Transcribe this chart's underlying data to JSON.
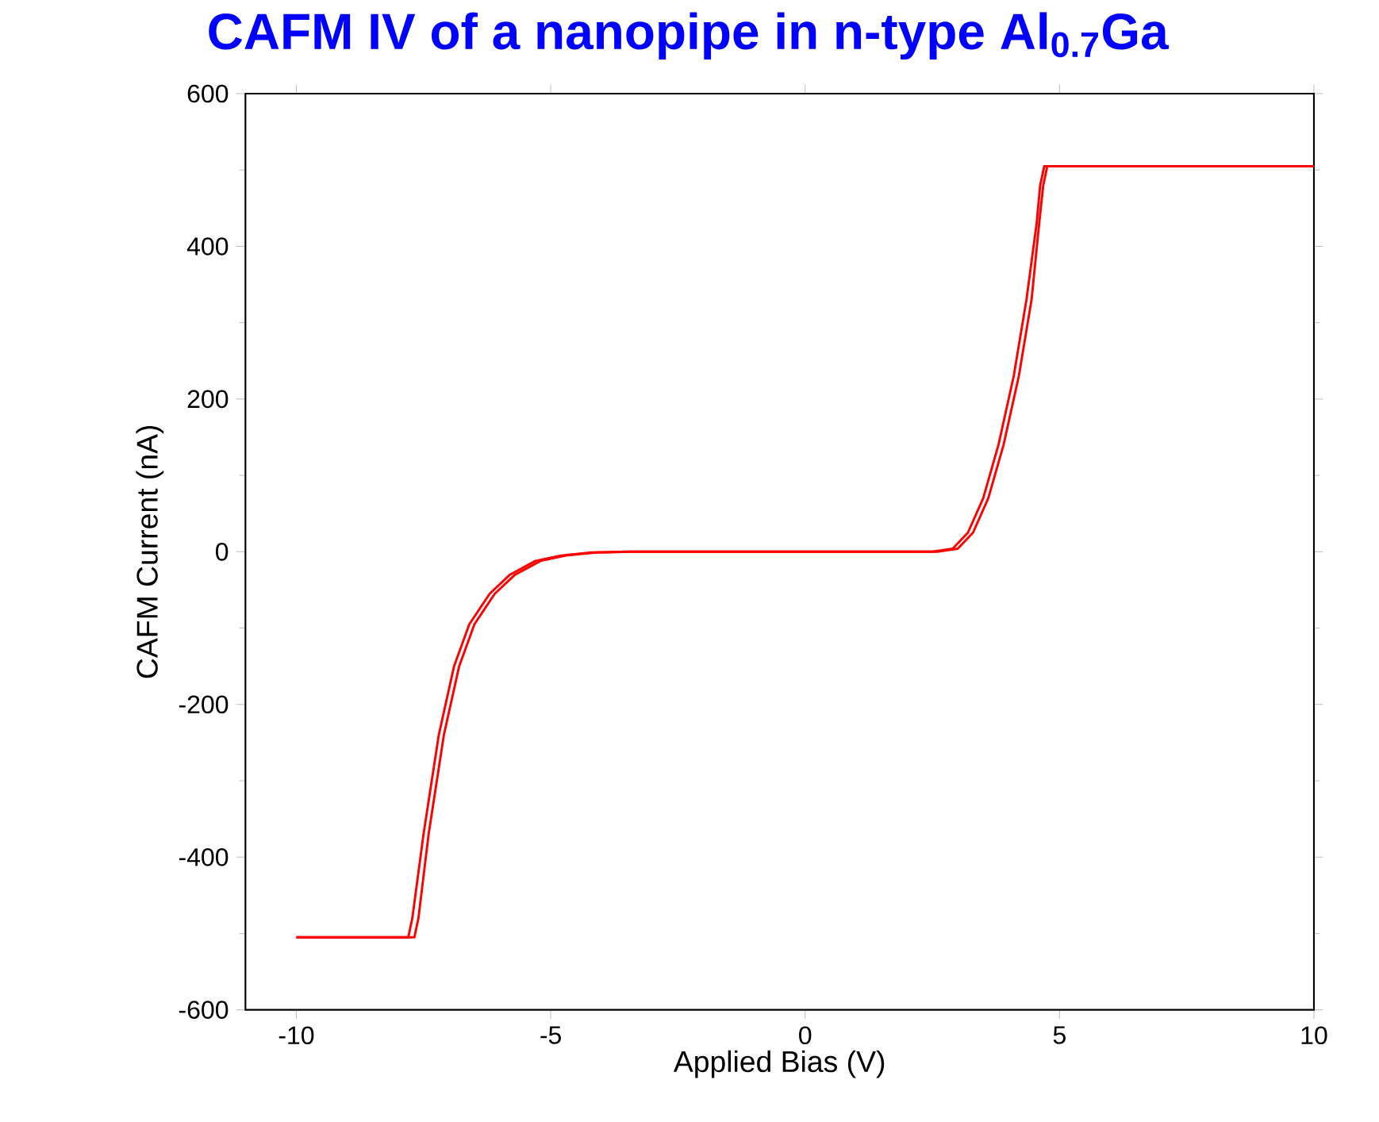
{
  "chart_data": {
    "type": "line",
    "title": "CAFM IV of a nanopipe in n-type Al$_{0.7}$Ga",
    "xlabel": "Applied Bias (V)",
    "ylabel": "CAFM Current (nA)",
    "xlim": [
      -11,
      10
    ],
    "ylim": [
      -600,
      600
    ],
    "xticks": [
      -10,
      -5,
      0,
      5,
      10
    ],
    "yticks": [
      -600,
      -400,
      -200,
      0,
      200,
      400,
      600
    ],
    "grid": false,
    "marker": "none",
    "line_style": "solid",
    "series": [
      {
        "color": "#ff0000",
        "x": [
          -10,
          -7.8,
          -7.72,
          -7.5,
          -7.2,
          -6.9,
          -6.6,
          -6.2,
          -5.8,
          -5.3,
          -4.8,
          -4.2,
          -3.5,
          0,
          2.5,
          2.9,
          3.2,
          3.5,
          3.8,
          4.1,
          4.35,
          4.55,
          4.62,
          4.7,
          10
        ],
        "values": [
          -505,
          -505,
          -480,
          -370,
          -240,
          -150,
          -95,
          -55,
          -30,
          -12,
          -5,
          -1,
          0,
          0,
          0,
          4,
          25,
          70,
          140,
          230,
          330,
          430,
          480,
          505,
          505
        ]
      },
      {
        "color": "#ff0000",
        "x": [
          -10,
          -7.68,
          -7.6,
          -7.4,
          -7.1,
          -6.8,
          -6.5,
          -6.1,
          -5.7,
          -5.2,
          -4.7,
          -4.1,
          -3.4,
          0,
          2.6,
          3.0,
          3.3,
          3.6,
          3.9,
          4.2,
          4.45,
          4.6,
          4.68,
          4.76,
          10
        ],
        "values": [
          -505,
          -505,
          -480,
          -370,
          -240,
          -150,
          -95,
          -55,
          -30,
          -12,
          -5,
          -1,
          0,
          0,
          0,
          4,
          25,
          70,
          140,
          230,
          330,
          430,
          480,
          505,
          505
        ]
      }
    ]
  }
}
